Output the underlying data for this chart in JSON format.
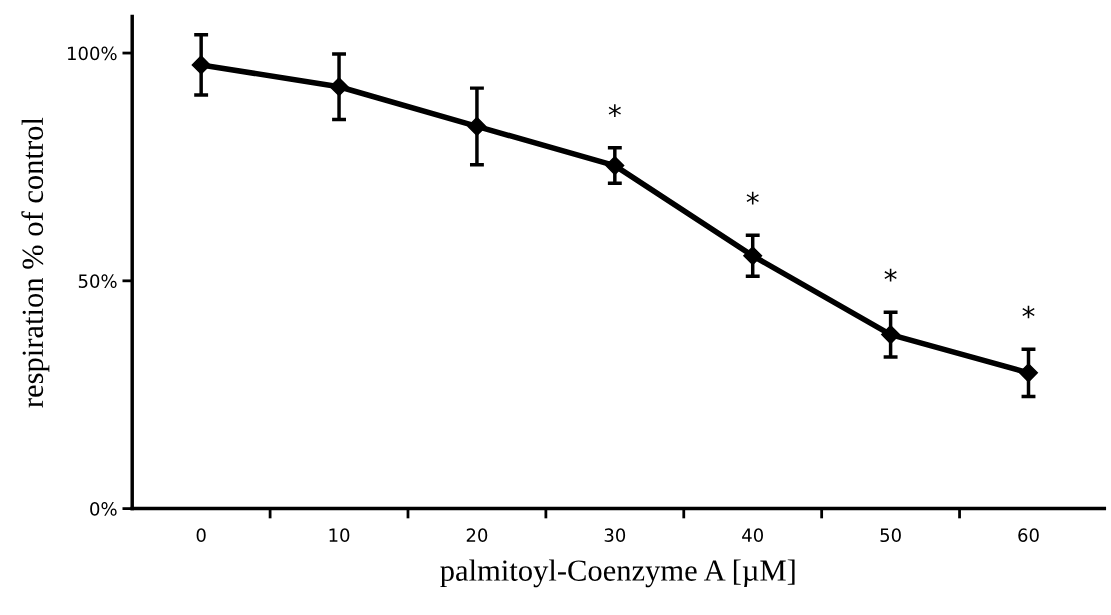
{
  "chart_data": {
    "type": "line",
    "xlabel": "palmitoyl-Coenzyme A [µM]",
    "ylabel": "respiration % of control",
    "categories": [
      "0",
      "10",
      "20",
      "30",
      "40",
      "50",
      "60"
    ],
    "series": [
      {
        "color": "#000000",
        "values": [
          97.4,
          92.6,
          83.9,
          75.3,
          55.5,
          38.2,
          29.8
        ],
        "errors": [
          6.6,
          7.2,
          8.4,
          3.9,
          4.5,
          4.9,
          5.2
        ]
      }
    ],
    "ylim": [
      0,
      108
    ],
    "yticks": [
      {
        "value": 0,
        "label": "0%"
      },
      {
        "value": 50,
        "label": "50%"
      },
      {
        "value": 100,
        "label": "100%"
      }
    ],
    "marker": "diamond",
    "line_style": "solid",
    "grid": false,
    "legend": false,
    "annotations": [
      {
        "text": "*",
        "x": "30",
        "y": 75.3
      },
      {
        "text": "*",
        "x": "40",
        "y": 55.5
      },
      {
        "text": "*",
        "x": "50",
        "y": 38.2
      },
      {
        "text": "*",
        "x": "60",
        "y": 29.8
      }
    ]
  }
}
